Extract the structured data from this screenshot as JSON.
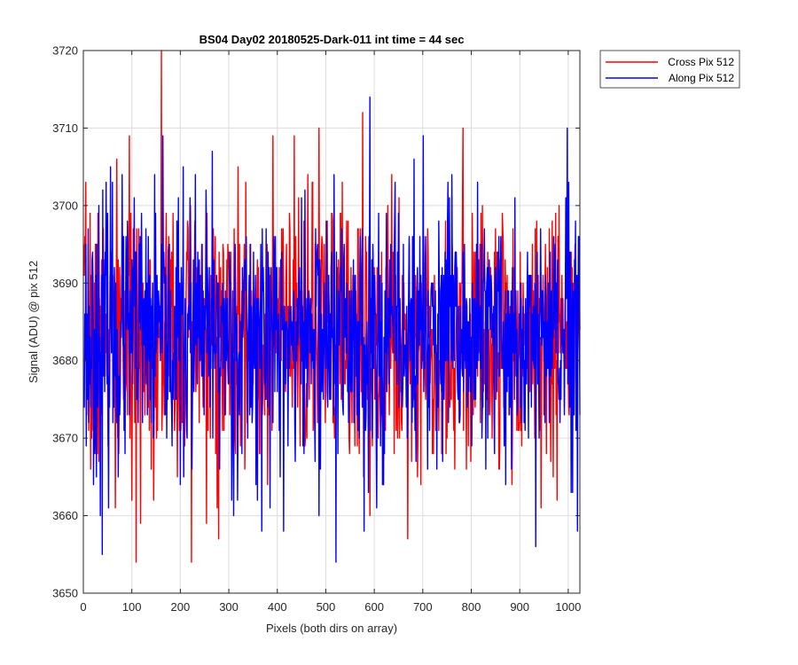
{
  "chart_data": {
    "type": "line",
    "title": "BS04 Day02 20180525-Dark-011 int time = 44 sec",
    "xlabel": "Pixels (both dirs on array)",
    "ylabel": "Signal (ADU) @ pix 512",
    "xlim": [
      0,
      1024
    ],
    "ylim": [
      3650,
      3720
    ],
    "xticks": [
      0,
      100,
      200,
      300,
      400,
      500,
      600,
      700,
      800,
      900,
      1000
    ],
    "yticks": [
      3650,
      3660,
      3670,
      3680,
      3690,
      3700,
      3710,
      3720
    ],
    "grid": true,
    "legend_position": "outside-top-right",
    "noise_model": {
      "mean": 3683,
      "std": 8.5,
      "points": 1024
    },
    "series": [
      {
        "name": "Cross Pix 512",
        "color": "#ff0000",
        "seed": 7,
        "peaks": [
          [
            160,
            3720
          ],
          [
            485,
            3710
          ],
          [
            575,
            3712
          ],
          [
            108,
            3654
          ],
          [
            222,
            3654
          ],
          [
            278,
            3657
          ],
          [
            65,
            3661
          ],
          [
            590,
            3660
          ]
        ]
      },
      {
        "name": "Along Pix 512",
        "color": "#0000ff",
        "seed": 23,
        "peaks": [
          [
            590,
            3714
          ],
          [
            520,
            3654
          ],
          [
            38,
            3655
          ],
          [
            412,
            3658
          ],
          [
            932,
            3656
          ],
          [
            1018,
            3658
          ],
          [
            700,
            3709
          ],
          [
            55,
            3705
          ],
          [
            265,
            3707
          ]
        ]
      }
    ]
  }
}
